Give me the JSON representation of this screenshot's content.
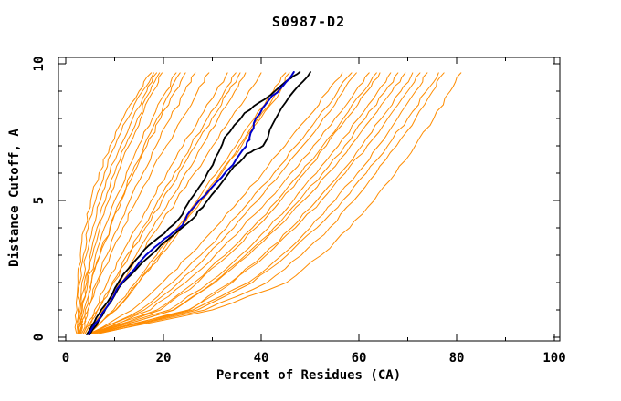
{
  "chart_data": {
    "type": "line",
    "title": "S0987-D2",
    "xlabel": "Percent of Residues (CA)",
    "ylabel": "Distance Cutoff, A",
    "xlim": [
      0,
      100
    ],
    "ylim": [
      0,
      10
    ],
    "x_ticks_major": [
      0,
      20,
      40,
      60,
      80,
      100
    ],
    "x_ticks_minor": [
      10,
      30,
      50,
      70,
      90
    ],
    "y_ticks_major": [
      0,
      5,
      10
    ],
    "y_ticks_minor": [
      1,
      2,
      3,
      4,
      6,
      7,
      8,
      9
    ],
    "grid": false,
    "legend": "none",
    "colors": {
      "models_orange": "#ff8c00",
      "highlight_blue": "#0000cc",
      "highlight_black": "#000000",
      "frame": "#000000",
      "background": "#ffffff"
    },
    "y_levels": [
      0.15,
      1,
      2,
      3,
      4,
      5,
      6,
      7,
      8,
      9,
      9.67
    ],
    "orange_series_x": [
      [
        2.2,
        2.3,
        2.5,
        3.0,
        3.9,
        5.1,
        6.8,
        9.0,
        11.7,
        15.0,
        17.5
      ],
      [
        2.4,
        2.5,
        2.9,
        3.6,
        4.6,
        6.1,
        7.9,
        10.1,
        12.7,
        15.7,
        18.0
      ],
      [
        2.5,
        2.7,
        3.3,
        4.2,
        5.5,
        7.1,
        9.0,
        11.2,
        13.7,
        16.6,
        18.6
      ],
      [
        2.7,
        3.0,
        3.8,
        5.0,
        6.4,
        8.1,
        10.0,
        12.2,
        14.7,
        17.3,
        19.2
      ],
      [
        2.9,
        3.4,
        4.3,
        5.5,
        7.0,
        8.8,
        10.7,
        12.9,
        15.3,
        17.9,
        19.7
      ],
      [
        2.6,
        3.3,
        4.5,
        6.1,
        7.9,
        10.0,
        12.4,
        14.9,
        17.7,
        20.6,
        22.6
      ],
      [
        3.1,
        4.0,
        5.3,
        7.0,
        9.0,
        11.2,
        13.5,
        16.0,
        18.7,
        21.5,
        23.4
      ],
      [
        2.8,
        3.7,
        5.2,
        7.0,
        9.1,
        11.4,
        13.9,
        16.6,
        19.4,
        22.4,
        24.5
      ],
      [
        3.3,
        4.5,
        6.3,
        8.4,
        10.7,
        13.1,
        15.8,
        18.5,
        21.4,
        24.4,
        26.5
      ],
      [
        3.0,
        4.6,
        6.7,
        9.1,
        11.7,
        14.5,
        17.5,
        20.6,
        23.8,
        27.0,
        29.3
      ],
      [
        3.7,
        5.9,
        8.5,
        11.4,
        14.4,
        17.5,
        20.7,
        24.0,
        27.3,
        30.8,
        33.1
      ],
      [
        4.0,
        6.5,
        9.5,
        12.5,
        15.7,
        18.9,
        22.2,
        25.6,
        29.0,
        32.5,
        34.8
      ],
      [
        3.6,
        6.6,
        9.8,
        13.0,
        16.3,
        19.7,
        23.1,
        26.5,
        29.9,
        33.4,
        35.7
      ],
      [
        4.4,
        7.7,
        11.1,
        14.4,
        17.8,
        21.2,
        24.5,
        27.9,
        31.2,
        34.6,
        36.8
      ],
      [
        4.0,
        7.7,
        11.4,
        15.2,
        18.9,
        22.6,
        26.3,
        30.1,
        33.8,
        37.5,
        40.0
      ],
      [
        4.5,
        9.8,
        14.3,
        18.6,
        22.8,
        26.9,
        30.9,
        34.8,
        38.6,
        42.5,
        45.0
      ],
      [
        5.0,
        10.3,
        14.9,
        19.2,
        23.4,
        27.5,
        31.6,
        35.5,
        39.4,
        43.3,
        45.8
      ],
      [
        4.8,
        10.2,
        14.9,
        19.4,
        23.6,
        27.8,
        31.9,
        36.0,
        39.9,
        43.9,
        46.5
      ],
      [
        5.2,
        13.6,
        19.8,
        25.4,
        30.6,
        35.5,
        40.3,
        44.9,
        49.4,
        53.7,
        56.6
      ],
      [
        5.5,
        15.3,
        21.8,
        27.6,
        32.9,
        37.8,
        42.6,
        47.1,
        51.5,
        55.7,
        58.5
      ],
      [
        5.0,
        16.1,
        23.1,
        29.0,
        34.4,
        39.3,
        44.0,
        48.5,
        52.7,
        56.8,
        59.5
      ],
      [
        5.8,
        17.3,
        24.5,
        30.6,
        36.1,
        41.3,
        46.1,
        50.7,
        55.1,
        59.3,
        62.1
      ],
      [
        5.3,
        18.7,
        26.3,
        32.6,
        38.2,
        43.3,
        48.1,
        52.6,
        56.8,
        61.0,
        63.6
      ],
      [
        6.0,
        19.4,
        27.0,
        33.3,
        38.9,
        44.0,
        48.8,
        53.3,
        57.5,
        61.7,
        64.3
      ],
      [
        5.6,
        21.2,
        29.3,
        35.8,
        41.5,
        46.6,
        51.3,
        55.8,
        59.9,
        63.9,
        66.5
      ],
      [
        6.2,
        22.0,
        30.2,
        36.8,
        42.6,
        47.8,
        52.6,
        57.1,
        61.3,
        65.4,
        68.0
      ],
      [
        5.9,
        22.2,
        30.6,
        37.4,
        43.3,
        48.7,
        53.7,
        58.3,
        62.6,
        66.8,
        69.5
      ],
      [
        6.5,
        25.1,
        33.7,
        40.4,
        46.2,
        51.4,
        56.2,
        60.6,
        64.6,
        68.6,
        71.0
      ],
      [
        6.1,
        25.3,
        34.1,
        41.0,
        47.0,
        52.3,
        57.2,
        61.7,
        65.9,
        70.0,
        72.5
      ],
      [
        6.8,
        26.0,
        37.4,
        44.2,
        50.0,
        55.1,
        59.7,
        64.0,
        67.9,
        71.6,
        74.0
      ],
      [
        6.4,
        27.0,
        38.2,
        45.3,
        51.4,
        56.7,
        61.5,
        65.9,
        70.0,
        73.8,
        76.3
      ],
      [
        7.0,
        28.5,
        41.2,
        48.2,
        54.0,
        59.0,
        63.5,
        67.7,
        71.6,
        75.1,
        77.4
      ],
      [
        7.2,
        30.0,
        45.2,
        52.3,
        58.1,
        63.1,
        67.5,
        71.5,
        75.3,
        78.7,
        80.9
      ]
    ],
    "blue_series": {
      "points": [
        [
          4.7,
          0.1
        ],
        [
          6.0,
          0.5
        ],
        [
          8.0,
          1.0
        ],
        [
          11.5,
          2.0
        ],
        [
          16.4,
          3.0
        ],
        [
          20.2,
          3.6
        ],
        [
          23.9,
          4.1
        ],
        [
          25.4,
          4.6
        ],
        [
          29.5,
          5.4
        ],
        [
          34.2,
          6.3
        ],
        [
          37.0,
          7.0
        ],
        [
          37.6,
          7.3
        ],
        [
          38.9,
          8.0
        ],
        [
          41.7,
          8.7
        ],
        [
          44.5,
          9.2
        ],
        [
          46.7,
          9.7
        ]
      ]
    },
    "black_series": [
      {
        "points": [
          [
            4.3,
            0.1
          ],
          [
            6.2,
            0.7
          ],
          [
            8.6,
            1.3
          ],
          [
            11.8,
            2.3
          ],
          [
            16.1,
            3.2
          ],
          [
            20.2,
            3.8
          ],
          [
            23.9,
            4.5
          ],
          [
            26.2,
            5.2
          ],
          [
            30.1,
            6.3
          ],
          [
            32.5,
            7.3
          ],
          [
            36.6,
            8.2
          ],
          [
            40.7,
            8.7
          ],
          [
            45.4,
            9.4
          ],
          [
            47.9,
            9.7
          ]
        ]
      },
      {
        "points": [
          [
            4.9,
            0.1
          ],
          [
            7.5,
            0.8
          ],
          [
            10.8,
            1.8
          ],
          [
            15.5,
            2.7
          ],
          [
            21.1,
            3.6
          ],
          [
            25.8,
            4.3
          ],
          [
            28.6,
            4.9
          ],
          [
            33.8,
            6.1
          ],
          [
            37.0,
            6.7
          ],
          [
            40.4,
            7.0
          ],
          [
            43.6,
            8.2
          ],
          [
            46.7,
            9.0
          ],
          [
            50.1,
            9.7
          ]
        ]
      }
    ]
  }
}
